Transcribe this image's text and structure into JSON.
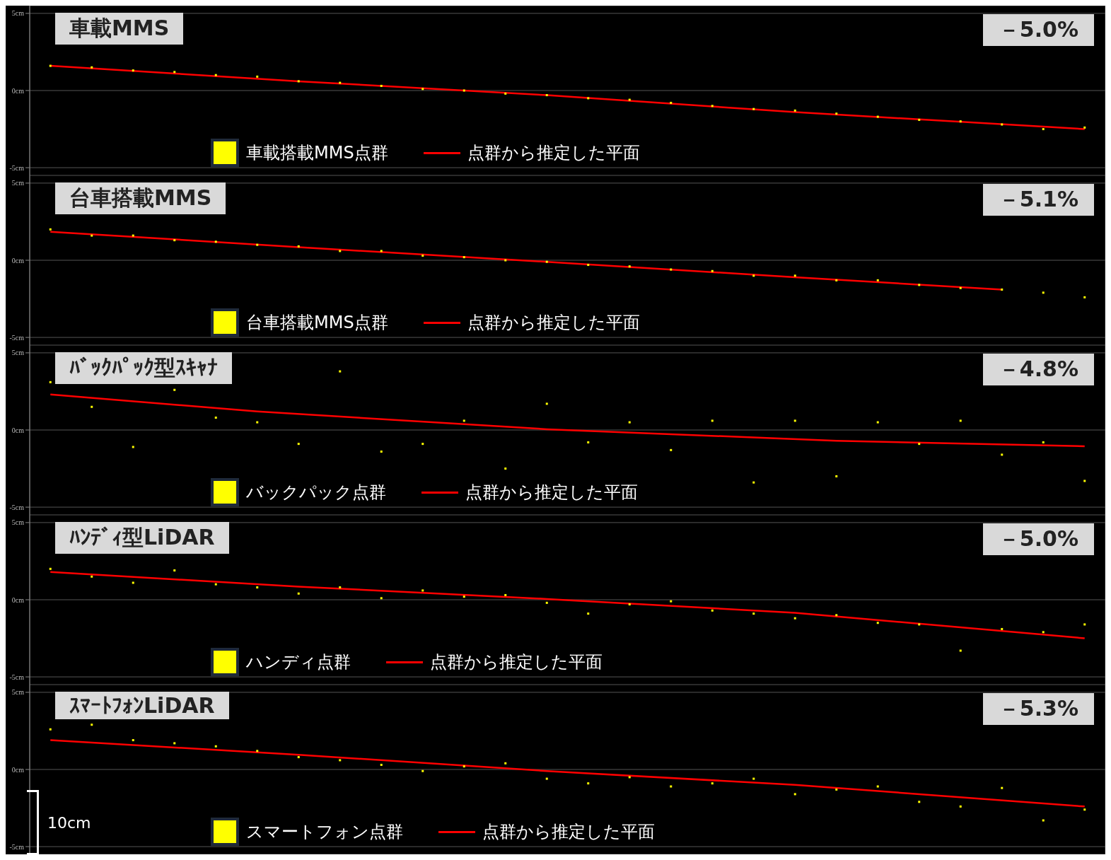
{
  "chart_data": [
    {
      "type": "scatter",
      "title": "車載MMS",
      "annotations": [
        "－5.0%"
      ],
      "categories": [
        null,
        null,
        null,
        null,
        null,
        null,
        null,
        null,
        null,
        null,
        null,
        null,
        null,
        null,
        null,
        null,
        null,
        null,
        null,
        null,
        null,
        null,
        null,
        null,
        null,
        null
      ],
      "ylim": [
        -5.5,
        5.5
      ],
      "yticks": [
        {
          "value": 5,
          "label": "5cm"
        },
        {
          "value": 0,
          "label": "0cm"
        },
        {
          "value": -5,
          "label": "-5cm"
        }
      ],
      "tick_labels": "y",
      "grid": true,
      "legend": "bottom",
      "series": [
        {
          "name": "車載搭載MMS点群",
          "color": "#ffff00",
          "marker": "square",
          "values": [
            1.6,
            1.5,
            1.3,
            1.2,
            1.0,
            0.9,
            0.6,
            0.5,
            0.3,
            0.1,
            0.0,
            -0.2,
            -0.3,
            -0.5,
            -0.6,
            -0.8,
            -1.0,
            -1.2,
            -1.3,
            -1.5,
            -1.7,
            -1.9,
            -2.0,
            -2.2,
            -2.5,
            -2.4
          ]
        },
        {
          "name": "点群から推定した平面",
          "type": "line",
          "color": "#ff0000",
          "values": [
            1.6,
            null,
            null,
            null,
            null,
            null,
            0.6,
            null,
            null,
            null,
            null,
            null,
            -0.3,
            null,
            null,
            null,
            null,
            null,
            -1.4,
            null,
            null,
            null,
            null,
            null,
            null,
            -2.5
          ]
        }
      ]
    },
    {
      "type": "scatter",
      "title": "台車搭載MMS",
      "annotations": [
        "－5.1%"
      ],
      "categories": [
        null,
        null,
        null,
        null,
        null,
        null,
        null,
        null,
        null,
        null,
        null,
        null,
        null,
        null,
        null,
        null,
        null,
        null,
        null,
        null,
        null,
        null,
        null,
        null,
        null,
        null
      ],
      "ylim": [
        -5.5,
        5.5
      ],
      "yticks": [
        {
          "value": 5,
          "label": "5cm"
        },
        {
          "value": 0,
          "label": "0cm"
        },
        {
          "value": -5,
          "label": "-5cm"
        }
      ],
      "tick_labels": "y",
      "grid": true,
      "legend": "bottom",
      "series": [
        {
          "name": "台車搭載MMS点群",
          "color": "#ffff00",
          "marker": "square",
          "values": [
            2.0,
            1.6,
            1.6,
            1.3,
            1.2,
            1.0,
            0.9,
            0.6,
            0.6,
            0.3,
            0.2,
            0.0,
            -0.1,
            -0.3,
            -0.4,
            -0.6,
            -0.7,
            -1.0,
            -1.0,
            -1.3,
            -1.3,
            -1.6,
            -1.8,
            -1.9,
            -2.1,
            -2.4
          ]
        },
        {
          "name": "点群から推定した平面",
          "type": "line",
          "color": "#ff0000",
          "values": [
            1.85,
            null,
            null,
            null,
            null,
            null,
            0.85,
            null,
            null,
            null,
            null,
            null,
            -0.1,
            null,
            null,
            null,
            null,
            null,
            -1.1,
            null,
            null,
            null,
            null,
            -1.9,
            null,
            null
          ]
        }
      ]
    },
    {
      "type": "scatter",
      "title": "ﾊﾞｯｸﾊﾟｯｸ型ｽｷｬﾅ",
      "annotations": [
        "－4.8%"
      ],
      "categories": [
        null,
        null,
        null,
        null,
        null,
        null,
        null,
        null,
        null,
        null,
        null,
        null,
        null,
        null,
        null,
        null,
        null,
        null,
        null,
        null,
        null,
        null,
        null,
        null,
        null,
        null
      ],
      "ylim": [
        -5.5,
        5.5
      ],
      "yticks": [
        {
          "value": 5,
          "label": "5cm"
        },
        {
          "value": 0,
          "label": "0cm"
        },
        {
          "value": -5,
          "label": "-5cm"
        }
      ],
      "tick_labels": "y",
      "grid": true,
      "legend": "bottom",
      "series": [
        {
          "name": "バックパック点群",
          "color": "#ffff00",
          "marker": "square",
          "values": [
            3.1,
            1.5,
            -1.1,
            2.6,
            0.8,
            0.5,
            -0.9,
            3.8,
            -1.4,
            -0.9,
            0.6,
            -2.5,
            1.7,
            -0.8,
            0.5,
            -1.3,
            0.6,
            -3.4,
            0.6,
            -3.0,
            0.5,
            -0.9,
            0.6,
            -1.6,
            -0.8,
            -3.3
          ]
        },
        {
          "name": "点群から推定した平面",
          "type": "line",
          "color": "#ff0000",
          "values": [
            2.3,
            null,
            null,
            null,
            null,
            1.2,
            null,
            null,
            null,
            null,
            null,
            null,
            0.05,
            null,
            null,
            null,
            null,
            null,
            null,
            -0.7,
            null,
            null,
            null,
            null,
            null,
            -1.05
          ]
        }
      ]
    },
    {
      "type": "scatter",
      "title": "ﾊﾝﾃﾞｨ型LiDAR",
      "annotations": [
        "－5.0%"
      ],
      "categories": [
        null,
        null,
        null,
        null,
        null,
        null,
        null,
        null,
        null,
        null,
        null,
        null,
        null,
        null,
        null,
        null,
        null,
        null,
        null,
        null,
        null,
        null,
        null,
        null,
        null,
        null
      ],
      "ylim": [
        -5.5,
        5.5
      ],
      "yticks": [
        {
          "value": 5,
          "label": "5cm"
        },
        {
          "value": 0,
          "label": "0cm"
        },
        {
          "value": -5,
          "label": "-5cm"
        }
      ],
      "tick_labels": "y",
      "grid": true,
      "legend": "bottom",
      "series": [
        {
          "name": "ハンディ点群",
          "color": "#ffff00",
          "marker": "square",
          "values": [
            2.0,
            1.5,
            1.1,
            1.9,
            1.0,
            0.8,
            0.4,
            0.8,
            0.1,
            0.6,
            0.2,
            0.3,
            -0.2,
            -0.9,
            -0.3,
            -0.1,
            -0.7,
            -0.9,
            -1.2,
            -1.0,
            -1.5,
            -1.6,
            -3.3,
            -1.9,
            -2.1,
            -1.6
          ]
        },
        {
          "name": "点群から推定した平面",
          "type": "line",
          "color": "#ff0000",
          "values": [
            1.8,
            null,
            null,
            null,
            null,
            null,
            0.85,
            null,
            null,
            null,
            null,
            null,
            0.05,
            null,
            null,
            null,
            null,
            null,
            -0.85,
            null,
            null,
            null,
            null,
            null,
            null,
            -2.5
          ]
        }
      ]
    },
    {
      "type": "scatter",
      "title": "ｽﾏｰﾄﾌｫﾝLiDAR",
      "annotations": [
        "－5.3%",
        "10cm"
      ],
      "categories": [
        null,
        null,
        null,
        null,
        null,
        null,
        null,
        null,
        null,
        null,
        null,
        null,
        null,
        null,
        null,
        null,
        null,
        null,
        null,
        null,
        null,
        null,
        null,
        null,
        null,
        null
      ],
      "ylim": [
        -5.5,
        5.5
      ],
      "yticks": [
        {
          "value": 5,
          "label": "5cm"
        },
        {
          "value": 0,
          "label": "0cm"
        },
        {
          "value": -5,
          "label": "-5cm"
        }
      ],
      "tick_labels": "y",
      "grid": true,
      "legend": "bottom",
      "series": [
        {
          "name": "スマートフォン点群",
          "color": "#ffff00",
          "marker": "square",
          "values": [
            2.6,
            2.9,
            1.9,
            1.7,
            1.5,
            1.2,
            0.8,
            0.6,
            0.3,
            -0.1,
            0.2,
            0.4,
            -0.6,
            -0.9,
            -0.5,
            -1.1,
            -0.9,
            -0.6,
            -1.6,
            -1.3,
            -1.1,
            -2.1,
            -2.4,
            -1.2,
            -3.3,
            -2.6
          ]
        },
        {
          "name": "点群から推定した平面",
          "type": "line",
          "color": "#ff0000",
          "values": [
            1.9,
            null,
            null,
            null,
            null,
            null,
            0.95,
            null,
            null,
            null,
            null,
            null,
            -0.1,
            null,
            null,
            null,
            null,
            null,
            -1.0,
            null,
            null,
            null,
            null,
            null,
            null,
            -2.4
          ]
        }
      ]
    }
  ]
}
